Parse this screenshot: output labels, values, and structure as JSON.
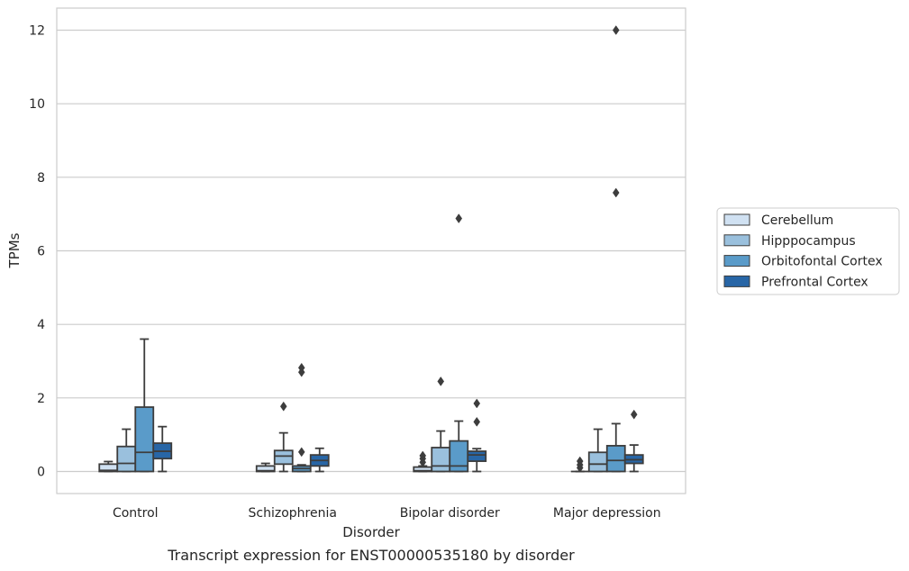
{
  "chart_data": {
    "type": "boxplot",
    "title": "",
    "caption": "Transcript expression for ENST00000535180 by disorder",
    "xlabel": "Disorder",
    "ylabel": "TPMs",
    "ylim": [
      -0.6,
      12.6
    ],
    "yticks": [
      0,
      2,
      4,
      6,
      8,
      10,
      12
    ],
    "grid": "horizontal",
    "legend_position": "right",
    "categories": [
      "Control",
      "Schizophrenia",
      "Bipolar disorder",
      "Major depression"
    ],
    "series": [
      {
        "name": "Cerebellum",
        "color": "#d0e1f2",
        "boxes": [
          {
            "whisker_low": 0,
            "q1": 0,
            "median": 0.03,
            "q3": 0.2,
            "whisker_high": 0.27,
            "outliers": []
          },
          {
            "whisker_low": 0,
            "q1": 0,
            "median": 0.02,
            "q3": 0.15,
            "whisker_high": 0.22,
            "outliers": []
          },
          {
            "whisker_low": 0,
            "q1": 0,
            "median": 0.02,
            "q3": 0.12,
            "whisker_high": 0.15,
            "outliers": [
              0.25,
              0.35,
              0.43
            ]
          },
          {
            "whisker_low": 0,
            "q1": 0,
            "median": 0,
            "q3": 0,
            "whisker_high": 0,
            "outliers": [
              0.1,
              0.18,
              0.28
            ]
          }
        ]
      },
      {
        "name": "Hipppocampus",
        "color": "#9ac0dd",
        "boxes": [
          {
            "whisker_low": 0,
            "q1": 0,
            "median": 0.22,
            "q3": 0.68,
            "whisker_high": 1.15,
            "outliers": []
          },
          {
            "whisker_low": 0,
            "q1": 0.2,
            "median": 0.42,
            "q3": 0.57,
            "whisker_high": 1.05,
            "outliers": [
              1.77
            ]
          },
          {
            "whisker_low": 0,
            "q1": 0,
            "median": 0.15,
            "q3": 0.65,
            "whisker_high": 1.1,
            "outliers": [
              2.45
            ]
          },
          {
            "whisker_low": 0,
            "q1": 0,
            "median": 0.2,
            "q3": 0.52,
            "whisker_high": 1.15,
            "outliers": []
          }
        ]
      },
      {
        "name": "Orbitofontal Cortex",
        "color": "#5a9bc9",
        "boxes": [
          {
            "whisker_low": 0,
            "q1": 0,
            "median": 0.52,
            "q3": 1.75,
            "whisker_high": 3.6,
            "outliers": []
          },
          {
            "whisker_low": 0,
            "q1": 0,
            "median": 0.08,
            "q3": 0.15,
            "whisker_high": 0.18,
            "outliers": [
              0.53,
              2.7,
              2.82
            ]
          },
          {
            "whisker_low": 0,
            "q1": 0,
            "median": 0.15,
            "q3": 0.83,
            "whisker_high": 1.37,
            "outliers": [
              6.88
            ]
          },
          {
            "whisker_low": 0,
            "q1": 0,
            "median": 0.3,
            "q3": 0.7,
            "whisker_high": 1.3,
            "outliers": [
              7.58,
              12.0
            ]
          }
        ]
      },
      {
        "name": "Prefrontal Cortex",
        "color": "#2866a6",
        "boxes": [
          {
            "whisker_low": 0,
            "q1": 0.35,
            "median": 0.55,
            "q3": 0.77,
            "whisker_high": 1.22,
            "outliers": []
          },
          {
            "whisker_low": 0,
            "q1": 0.15,
            "median": 0.3,
            "q3": 0.45,
            "whisker_high": 0.63,
            "outliers": []
          },
          {
            "whisker_low": 0,
            "q1": 0.28,
            "median": 0.45,
            "q3": 0.55,
            "whisker_high": 0.62,
            "outliers": [
              1.35,
              1.85
            ]
          },
          {
            "whisker_low": 0,
            "q1": 0.22,
            "median": 0.32,
            "q3": 0.45,
            "whisker_high": 0.72,
            "outliers": [
              1.55
            ]
          }
        ]
      }
    ]
  }
}
